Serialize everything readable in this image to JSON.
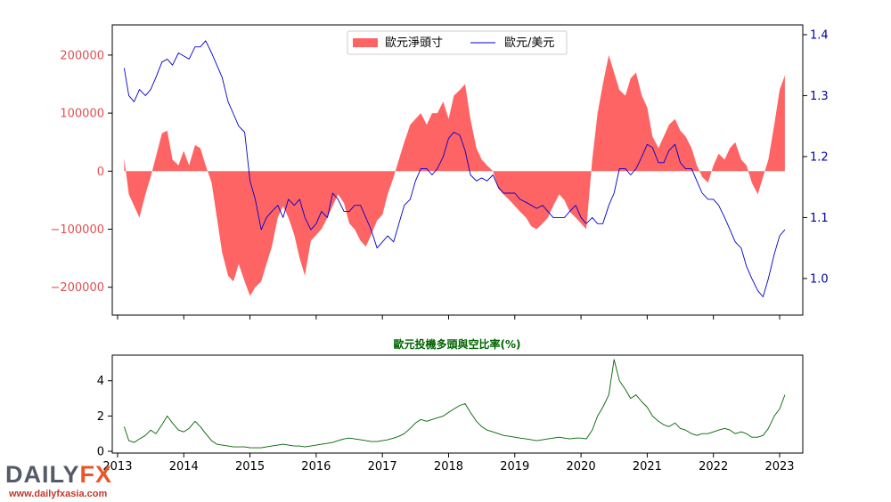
{
  "logo": {
    "brand_main": "DAILY",
    "brand_fx": "FX",
    "url": "www.dailyfxasia.com"
  },
  "colors": {
    "positions_fill": "#ff6464",
    "price_line": "#0000cc",
    "ratio_line": "#006400",
    "left_tick": "#e05050",
    "right_tick": "#0000aa",
    "ratio_title": "#006400"
  },
  "chart_data": [
    {
      "type": "area",
      "legend": [
        "歐元淨頭寸",
        "歐元/美元"
      ],
      "legend_placement": "top-center",
      "xlim": [
        2012.92,
        2023.35
      ],
      "x_ticks": [
        2013,
        2014,
        2015,
        2016,
        2017,
        2018,
        2019,
        2020,
        2021,
        2022,
        2023
      ],
      "left_axis": {
        "ylim": [
          -248000,
          252000
        ],
        "ticks": [
          -200000,
          -100000,
          0,
          100000,
          200000
        ],
        "tick_labels": [
          "−200000",
          "−100000",
          "0",
          "100000",
          "200000"
        ]
      },
      "right_axis": {
        "ylim": [
          0.94,
          1.416
        ],
        "ticks": [
          1.0,
          1.1,
          1.2,
          1.3,
          1.4
        ],
        "tick_labels": [
          "1.0",
          "1.1",
          "1.2",
          "1.3",
          "1.4"
        ]
      },
      "series": [
        {
          "name": "歐元淨頭寸",
          "type": "area",
          "axis": "left",
          "x": [
            2013.1,
            2013.17,
            2013.25,
            2013.33,
            2013.42,
            2013.5,
            2013.58,
            2013.67,
            2013.75,
            2013.83,
            2013.92,
            2014.0,
            2014.08,
            2014.17,
            2014.25,
            2014.33,
            2014.42,
            2014.5,
            2014.58,
            2014.67,
            2014.75,
            2014.83,
            2014.92,
            2015.0,
            2015.08,
            2015.17,
            2015.25,
            2015.33,
            2015.42,
            2015.5,
            2015.58,
            2015.67,
            2015.75,
            2015.83,
            2015.92,
            2016.0,
            2016.08,
            2016.17,
            2016.25,
            2016.33,
            2016.42,
            2016.5,
            2016.58,
            2016.67,
            2016.75,
            2016.83,
            2016.92,
            2017.0,
            2017.08,
            2017.17,
            2017.25,
            2017.33,
            2017.42,
            2017.5,
            2017.58,
            2017.67,
            2017.75,
            2017.83,
            2017.92,
            2018.0,
            2018.08,
            2018.17,
            2018.25,
            2018.33,
            2018.42,
            2018.5,
            2018.58,
            2018.67,
            2018.75,
            2018.83,
            2018.92,
            2019.0,
            2019.08,
            2019.17,
            2019.25,
            2019.33,
            2019.42,
            2019.5,
            2019.58,
            2019.67,
            2019.75,
            2019.83,
            2019.92,
            2020.0,
            2020.08,
            2020.17,
            2020.25,
            2020.33,
            2020.42,
            2020.5,
            2020.58,
            2020.67,
            2020.75,
            2020.83,
            2020.92,
            2021.0,
            2021.08,
            2021.17,
            2021.25,
            2021.33,
            2021.42,
            2021.5,
            2021.58,
            2021.67,
            2021.75,
            2021.83,
            2021.92,
            2022.0,
            2022.08,
            2022.17,
            2022.25,
            2022.33,
            2022.42,
            2022.5,
            2022.58,
            2022.67,
            2022.75,
            2022.83,
            2022.92,
            2023.0,
            2023.08
          ],
          "values": [
            22000,
            -40000,
            -60000,
            -80000,
            -40000,
            -10000,
            25000,
            65000,
            70000,
            20000,
            10000,
            35000,
            10000,
            45000,
            40000,
            10000,
            -20000,
            -80000,
            -140000,
            -180000,
            -190000,
            -160000,
            -190000,
            -215000,
            -200000,
            -190000,
            -160000,
            -130000,
            -80000,
            -60000,
            -80000,
            -110000,
            -150000,
            -180000,
            -120000,
            -110000,
            -100000,
            -80000,
            -60000,
            -40000,
            -55000,
            -90000,
            -100000,
            -120000,
            -130000,
            -110000,
            -85000,
            -75000,
            -40000,
            -10000,
            20000,
            50000,
            80000,
            90000,
            100000,
            80000,
            100000,
            100000,
            120000,
            90000,
            130000,
            140000,
            150000,
            90000,
            40000,
            20000,
            10000,
            0,
            -30000,
            -40000,
            -50000,
            -60000,
            -70000,
            -80000,
            -95000,
            -100000,
            -90000,
            -80000,
            -60000,
            -40000,
            -50000,
            -70000,
            -80000,
            -90000,
            -100000,
            20000,
            100000,
            150000,
            200000,
            170000,
            140000,
            130000,
            160000,
            170000,
            130000,
            110000,
            60000,
            40000,
            60000,
            80000,
            90000,
            70000,
            60000,
            40000,
            10000,
            -10000,
            -20000,
            10000,
            30000,
            20000,
            40000,
            50000,
            20000,
            10000,
            -20000,
            -40000,
            -10000,
            20000,
            80000,
            140000,
            165000
          ]
        },
        {
          "name": "歐元/美元",
          "type": "line",
          "axis": "right",
          "x": [
            2013.1,
            2013.17,
            2013.25,
            2013.33,
            2013.42,
            2013.5,
            2013.58,
            2013.67,
            2013.75,
            2013.83,
            2013.92,
            2014.0,
            2014.08,
            2014.17,
            2014.25,
            2014.33,
            2014.42,
            2014.5,
            2014.58,
            2014.67,
            2014.75,
            2014.83,
            2014.92,
            2015.0,
            2015.08,
            2015.17,
            2015.25,
            2015.33,
            2015.42,
            2015.5,
            2015.58,
            2015.67,
            2015.75,
            2015.83,
            2015.92,
            2016.0,
            2016.08,
            2016.17,
            2016.25,
            2016.33,
            2016.42,
            2016.5,
            2016.58,
            2016.67,
            2016.75,
            2016.83,
            2016.92,
            2017.0,
            2017.08,
            2017.17,
            2017.25,
            2017.33,
            2017.42,
            2017.5,
            2017.58,
            2017.67,
            2017.75,
            2017.83,
            2017.92,
            2018.0,
            2018.08,
            2018.17,
            2018.25,
            2018.33,
            2018.42,
            2018.5,
            2018.58,
            2018.67,
            2018.75,
            2018.83,
            2018.92,
            2019.0,
            2019.08,
            2019.17,
            2019.25,
            2019.33,
            2019.42,
            2019.5,
            2019.58,
            2019.67,
            2019.75,
            2019.83,
            2019.92,
            2020.0,
            2020.08,
            2020.17,
            2020.25,
            2020.33,
            2020.42,
            2020.5,
            2020.58,
            2020.67,
            2020.75,
            2020.83,
            2020.92,
            2021.0,
            2021.08,
            2021.17,
            2021.25,
            2021.33,
            2021.42,
            2021.5,
            2021.58,
            2021.67,
            2021.75,
            2021.83,
            2021.92,
            2022.0,
            2022.08,
            2022.17,
            2022.25,
            2022.33,
            2022.42,
            2022.5,
            2022.58,
            2022.67,
            2022.75,
            2022.83,
            2022.92,
            2023.0,
            2023.08
          ],
          "values": [
            1.345,
            1.3,
            1.29,
            1.31,
            1.3,
            1.31,
            1.33,
            1.355,
            1.36,
            1.35,
            1.37,
            1.365,
            1.36,
            1.38,
            1.38,
            1.39,
            1.37,
            1.35,
            1.33,
            1.29,
            1.27,
            1.25,
            1.24,
            1.16,
            1.13,
            1.08,
            1.1,
            1.11,
            1.12,
            1.1,
            1.13,
            1.12,
            1.13,
            1.1,
            1.08,
            1.09,
            1.11,
            1.1,
            1.14,
            1.13,
            1.11,
            1.11,
            1.12,
            1.12,
            1.1,
            1.08,
            1.05,
            1.06,
            1.07,
            1.06,
            1.09,
            1.12,
            1.13,
            1.16,
            1.18,
            1.18,
            1.17,
            1.18,
            1.2,
            1.23,
            1.24,
            1.235,
            1.21,
            1.17,
            1.16,
            1.165,
            1.16,
            1.17,
            1.15,
            1.14,
            1.14,
            1.14,
            1.13,
            1.125,
            1.12,
            1.115,
            1.12,
            1.11,
            1.1,
            1.1,
            1.1,
            1.11,
            1.12,
            1.1,
            1.09,
            1.1,
            1.09,
            1.09,
            1.12,
            1.14,
            1.18,
            1.18,
            1.17,
            1.18,
            1.2,
            1.22,
            1.215,
            1.19,
            1.19,
            1.21,
            1.22,
            1.19,
            1.18,
            1.18,
            1.16,
            1.14,
            1.13,
            1.13,
            1.12,
            1.1,
            1.08,
            1.06,
            1.05,
            1.02,
            1.0,
            0.98,
            0.97,
            1.0,
            1.04,
            1.07,
            1.08
          ]
        }
      ]
    },
    {
      "type": "line",
      "title": "歐元投機多頭與空比率(%)",
      "xlim": [
        2012.92,
        2023.35
      ],
      "x_ticks": [
        2013,
        2014,
        2015,
        2016,
        2017,
        2018,
        2019,
        2020,
        2021,
        2022,
        2023
      ],
      "x_tick_labels": [
        "2013",
        "2014",
        "2015",
        "2016",
        "2017",
        "2018",
        "2019",
        "2020",
        "2021",
        "2022",
        "2023"
      ],
      "ylim": [
        -0.1,
        5.45
      ],
      "y_ticks": [
        0,
        2,
        4
      ],
      "y_tick_labels": [
        "0",
        "2",
        "4"
      ],
      "series": [
        {
          "name": "歐元投機多頭與空比率(%)",
          "x": [
            2013.1,
            2013.17,
            2013.25,
            2013.33,
            2013.42,
            2013.5,
            2013.58,
            2013.67,
            2013.75,
            2013.83,
            2013.92,
            2014.0,
            2014.08,
            2014.17,
            2014.25,
            2014.33,
            2014.42,
            2014.5,
            2014.58,
            2014.67,
            2014.75,
            2014.83,
            2014.92,
            2015.0,
            2015.08,
            2015.17,
            2015.25,
            2015.33,
            2015.42,
            2015.5,
            2015.58,
            2015.67,
            2015.75,
            2015.83,
            2015.92,
            2016.0,
            2016.08,
            2016.17,
            2016.25,
            2016.33,
            2016.42,
            2016.5,
            2016.58,
            2016.67,
            2016.75,
            2016.83,
            2016.92,
            2017.0,
            2017.08,
            2017.17,
            2017.25,
            2017.33,
            2017.42,
            2017.5,
            2017.58,
            2017.67,
            2017.75,
            2017.83,
            2017.92,
            2018.0,
            2018.08,
            2018.17,
            2018.25,
            2018.33,
            2018.42,
            2018.5,
            2018.58,
            2018.67,
            2018.75,
            2018.83,
            2018.92,
            2019.0,
            2019.08,
            2019.17,
            2019.25,
            2019.33,
            2019.42,
            2019.5,
            2019.58,
            2019.67,
            2019.75,
            2019.83,
            2019.92,
            2020.0,
            2020.08,
            2020.17,
            2020.25,
            2020.33,
            2020.42,
            2020.5,
            2020.58,
            2020.67,
            2020.75,
            2020.83,
            2020.92,
            2021.0,
            2021.08,
            2021.17,
            2021.25,
            2021.33,
            2021.42,
            2021.5,
            2021.58,
            2021.67,
            2021.75,
            2021.83,
            2021.92,
            2022.0,
            2022.08,
            2022.17,
            2022.25,
            2022.33,
            2022.42,
            2022.5,
            2022.58,
            2022.67,
            2022.75,
            2022.83,
            2022.92,
            2023.0,
            2023.08
          ],
          "values": [
            1.4,
            0.6,
            0.5,
            0.7,
            0.9,
            1.2,
            1.0,
            1.5,
            2.0,
            1.6,
            1.2,
            1.1,
            1.3,
            1.7,
            1.4,
            1.0,
            0.6,
            0.4,
            0.35,
            0.3,
            0.25,
            0.25,
            0.25,
            0.2,
            0.2,
            0.2,
            0.25,
            0.3,
            0.35,
            0.4,
            0.35,
            0.3,
            0.3,
            0.25,
            0.3,
            0.35,
            0.4,
            0.45,
            0.5,
            0.6,
            0.7,
            0.75,
            0.7,
            0.65,
            0.6,
            0.55,
            0.55,
            0.6,
            0.65,
            0.75,
            0.85,
            1.0,
            1.3,
            1.6,
            1.8,
            1.7,
            1.8,
            1.9,
            2.0,
            2.2,
            2.4,
            2.6,
            2.7,
            2.2,
            1.7,
            1.4,
            1.2,
            1.1,
            1.0,
            0.9,
            0.85,
            0.8,
            0.75,
            0.7,
            0.65,
            0.6,
            0.65,
            0.7,
            0.75,
            0.8,
            0.75,
            0.7,
            0.75,
            0.75,
            0.7,
            1.2,
            2.0,
            2.5,
            3.2,
            5.2,
            4.0,
            3.5,
            3.0,
            3.2,
            2.8,
            2.5,
            2.0,
            1.7,
            1.5,
            1.4,
            1.6,
            1.3,
            1.2,
            1.0,
            0.9,
            1.0,
            1.0,
            1.1,
            1.2,
            1.3,
            1.2,
            1.0,
            1.1,
            1.0,
            0.8,
            0.8,
            0.9,
            1.3,
            2.0,
            2.4,
            3.2
          ]
        }
      ]
    }
  ]
}
